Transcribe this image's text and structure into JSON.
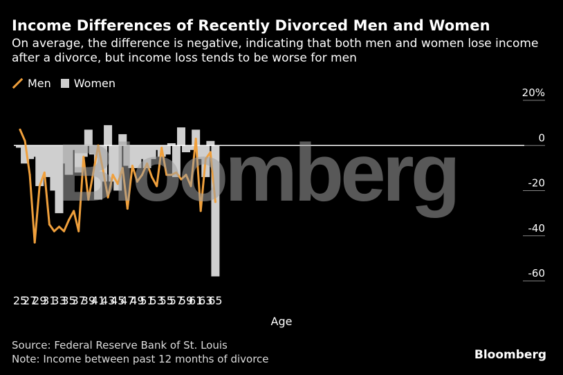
{
  "title": "Income Differences of Recently Divorced Men and Women",
  "subtitle": "On average, the difference is negative, indicating that both men and women lose income after a divorce, but income loss tends to be worse for men",
  "legend": {
    "men": "Men",
    "women": "Women"
  },
  "source": "Source: Federal Reserve Bank of St. Louis",
  "note": "Note: Income between past 12 months of divorce",
  "brand": "Bloomberg",
  "watermark": "Bloomberg",
  "colors": {
    "men": "#f0a03c",
    "women": "#cfcfcf",
    "background": "#000000",
    "zero_line": "#ffffff"
  },
  "chart_data": {
    "type": "bar+line",
    "xlabel": "Age",
    "ylabel": "",
    "ylim": [
      -60,
      20
    ],
    "yticks": [
      20,
      0,
      -20,
      -40,
      -60
    ],
    "ytick_labels": [
      "20%",
      "0",
      "-20",
      "-40",
      "-60"
    ],
    "xtick_labels": [
      "25",
      "27",
      "29",
      "31",
      "33",
      "35",
      "37",
      "39",
      "41",
      "43",
      "45",
      "47",
      "49",
      "51",
      "53",
      "55",
      "57",
      "59",
      "61",
      "63",
      "65"
    ],
    "categories": [
      25,
      26,
      27,
      28,
      29,
      30,
      31,
      32,
      33,
      34,
      35,
      36,
      37,
      38,
      39,
      40,
      41,
      42,
      43,
      44,
      45,
      46,
      47,
      48,
      49,
      50,
      51,
      52,
      53,
      54,
      55,
      56,
      57,
      58,
      59,
      60,
      61,
      62,
      63,
      64,
      65
    ],
    "series": [
      {
        "name": "Women",
        "type": "bar",
        "values": [
          -1,
          -8,
          -6,
          -5,
          -18,
          -12,
          -14,
          -20,
          -30,
          -8,
          -13,
          -2,
          -12,
          -5,
          7,
          -4,
          -24,
          -16,
          9,
          -16,
          -20,
          5,
          -9,
          -10,
          -10,
          -6,
          -10,
          -6,
          -2,
          -5,
          -4,
          1,
          -14,
          8,
          -3,
          -2,
          7,
          -6,
          -14,
          2,
          -58
        ]
      },
      {
        "name": "Men",
        "type": "line",
        "values": [
          7,
          2,
          -13,
          -43,
          -18,
          -12,
          -35,
          -38,
          -36,
          -38,
          -33,
          -29,
          -38,
          -5,
          -24,
          -12,
          0,
          -11,
          -23,
          -13,
          -17,
          -10,
          -28,
          -9,
          -16,
          -13,
          -8,
          -14,
          -18,
          -1,
          -13,
          -13,
          -12,
          -15,
          -13,
          -18,
          3,
          -29,
          -6,
          -3,
          -25
        ]
      }
    ]
  }
}
